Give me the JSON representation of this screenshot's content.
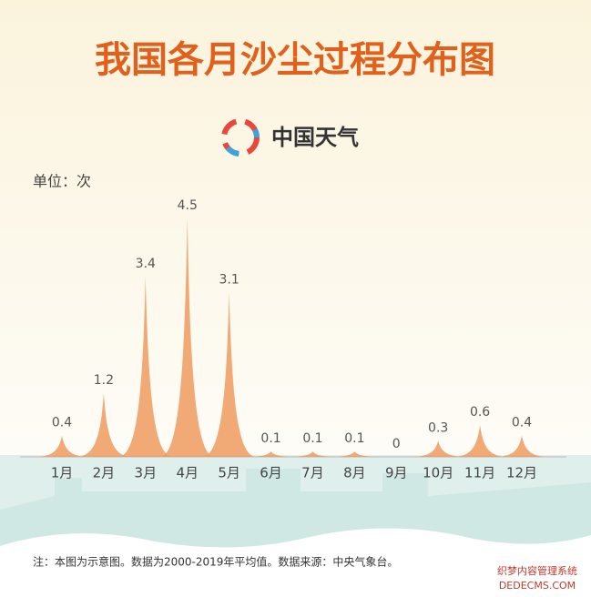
{
  "title": "我国各月沙尘过程分布图",
  "logo_text": "中国天气",
  "unit_label": "单位：次",
  "note": "注：本图为示意图。数据为2000-2019年平均值。数据来源：中央气象台。",
  "watermark": [
    "织梦内容管理系统",
    "DEDECMS.COM"
  ],
  "chart_data": {
    "type": "peak",
    "categories": [
      "1月",
      "2月",
      "3月",
      "4月",
      "5月",
      "6月",
      "7月",
      "8月",
      "9月",
      "10月",
      "11月",
      "12月"
    ],
    "values": [
      0.4,
      1.2,
      3.4,
      4.5,
      3.1,
      0.1,
      0.1,
      0.1,
      0,
      0.3,
      0.6,
      0.4
    ],
    "color": "#ee9a5f"
  }
}
